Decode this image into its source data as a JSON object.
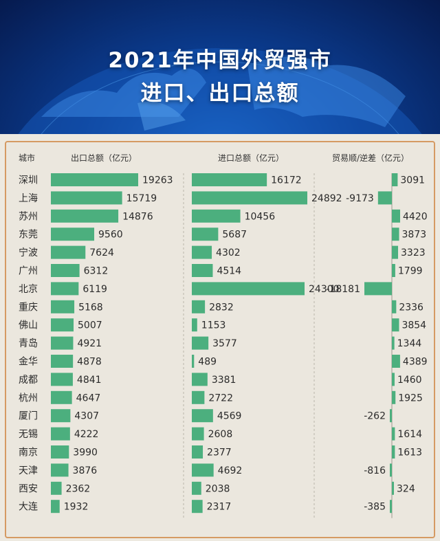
{
  "header": {
    "title_line1": "2021年中国外贸强市",
    "title_line2": "进口、出口总额"
  },
  "colors": {
    "bar": "#4caf7e",
    "accent_border": "#d59a62",
    "header_bg": "#0b3c8f"
  },
  "columns": {
    "city": "城市",
    "export": "出口总额（亿元）",
    "import": "进口总额（亿元）",
    "balance": "贸易顺/逆差（亿元）"
  },
  "chart_data": {
    "type": "bar",
    "title": "2021年中国外贸强市 进口、出口总额",
    "categories": [
      "深圳",
      "上海",
      "苏州",
      "东莞",
      "宁波",
      "广州",
      "北京",
      "重庆",
      "佛山",
      "青岛",
      "金华",
      "成都",
      "杭州",
      "厦门",
      "无锡",
      "南京",
      "天津",
      "西安",
      "大连"
    ],
    "series": [
      {
        "name": "出口总额（亿元）",
        "values": [
          19263,
          15719,
          14876,
          9560,
          7624,
          6312,
          6119,
          5168,
          5007,
          4921,
          4878,
          4841,
          4647,
          4307,
          4222,
          3990,
          3876,
          2362,
          1932
        ]
      },
      {
        "name": "进口总额（亿元）",
        "values": [
          16172,
          24892,
          10456,
          5687,
          4302,
          4514,
          24300,
          2832,
          1153,
          3577,
          489,
          3381,
          2722,
          4569,
          2608,
          2377,
          4692,
          2038,
          2317
        ]
      },
      {
        "name": "贸易顺/逆差（亿元）",
        "values": [
          3091,
          -9173,
          4420,
          3873,
          3323,
          1799,
          -18181,
          2336,
          3854,
          1344,
          4389,
          1460,
          1925,
          -262,
          1614,
          1613,
          -816,
          324,
          -385
        ]
      }
    ]
  }
}
